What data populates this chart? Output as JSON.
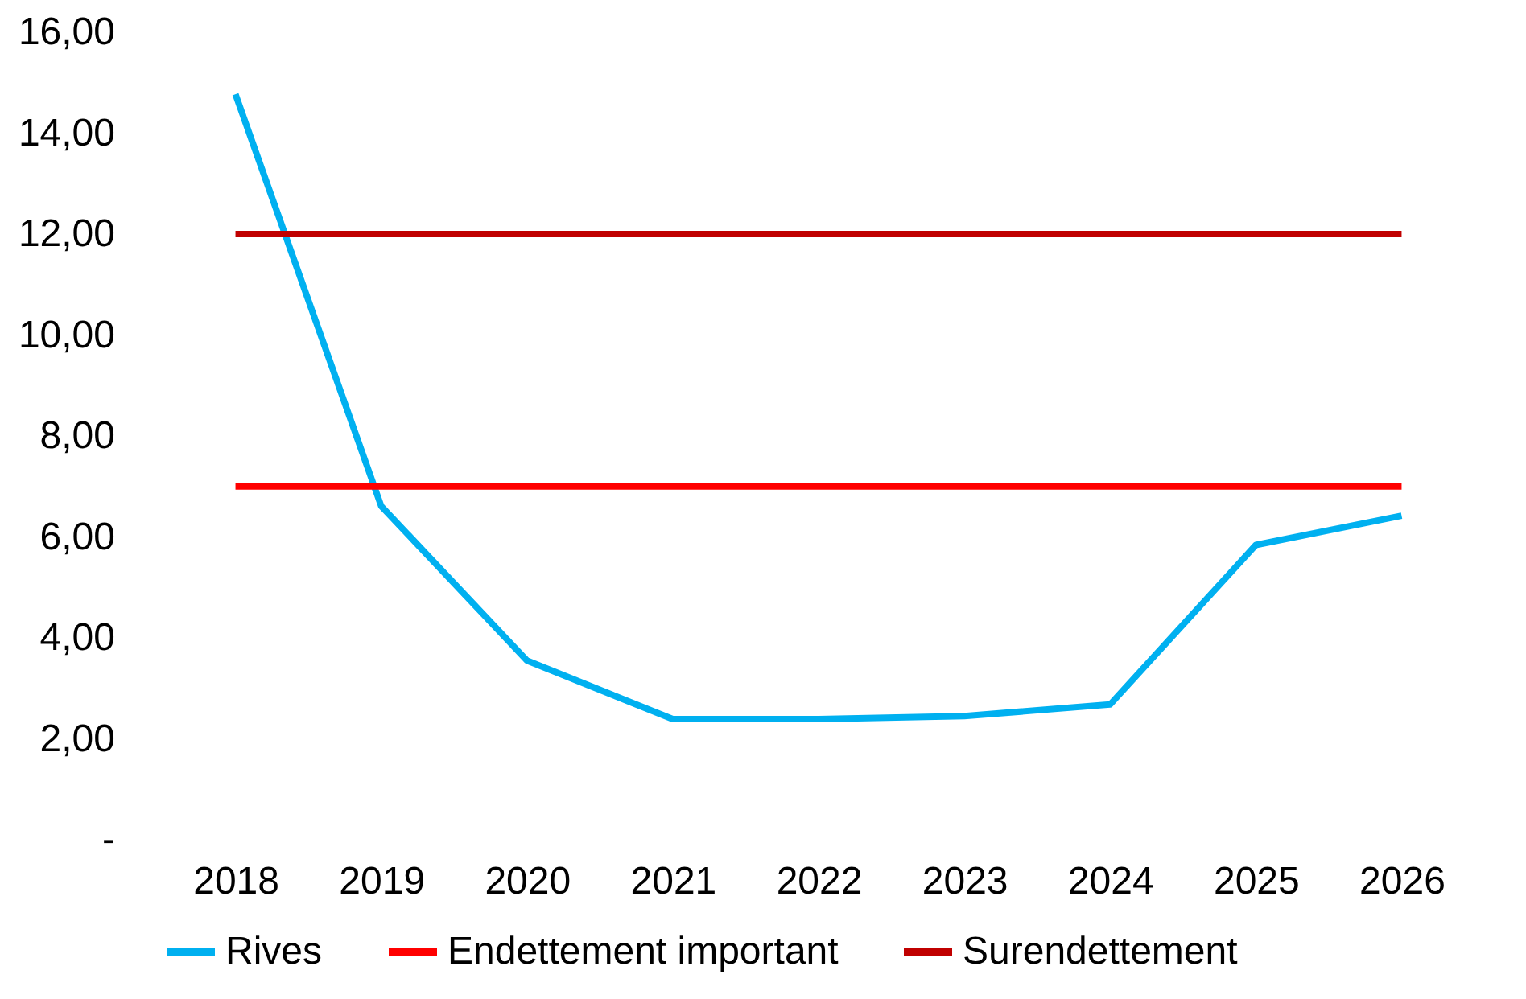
{
  "chart_data": {
    "type": "line",
    "categories": [
      "2018",
      "2019",
      "2020",
      "2021",
      "2022",
      "2023",
      "2024",
      "2025",
      "2026"
    ],
    "series": [
      {
        "name": "Rives",
        "color": "#00b0f0",
        "values": [
          14.77,
          6.61,
          3.55,
          2.39,
          2.39,
          2.45,
          2.68,
          5.84,
          6.42
        ]
      },
      {
        "name": "Endettement important",
        "color": "#ff0000",
        "values": [
          7,
          7,
          7,
          7,
          7,
          7,
          7,
          7,
          7
        ]
      },
      {
        "name": "Surendettement",
        "color": "#c00000",
        "values": [
          12,
          12,
          12,
          12,
          12,
          12,
          12,
          12,
          12
        ]
      }
    ],
    "ylim": [
      0,
      16
    ],
    "yticks": [
      {
        "value": 0,
        "label": "-"
      },
      {
        "value": 2,
        "label": "2,00"
      },
      {
        "value": 4,
        "label": "4,00"
      },
      {
        "value": 6,
        "label": "6,00"
      },
      {
        "value": 8,
        "label": "8,00"
      },
      {
        "value": 10,
        "label": "10,00"
      },
      {
        "value": 12,
        "label": "12,00"
      },
      {
        "value": 14,
        "label": "14,00"
      },
      {
        "value": 16,
        "label": "16,00"
      }
    ],
    "grid": false,
    "legend": "bottom",
    "line_style": "solid"
  }
}
